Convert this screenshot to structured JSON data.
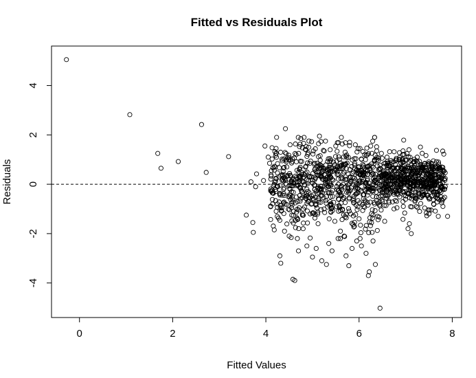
{
  "chart_data": {
    "type": "scatter",
    "title": "Fitted vs Residuals Plot",
    "xlabel": "Fitted Values",
    "ylabel": "Residuals",
    "xlim": [
      -0.6,
      8.2
    ],
    "ylim": [
      -5.4,
      5.6
    ],
    "xticks": [
      0,
      2,
      4,
      6,
      8
    ],
    "yticks": [
      -4,
      -2,
      0,
      2,
      4
    ],
    "xtick_labels": [
      "0",
      "2",
      "4",
      "6",
      "8"
    ],
    "ytick_labels": [
      "-4",
      "-2",
      "0",
      "2",
      "4"
    ],
    "reference_line": {
      "y": 0,
      "style": "dashed"
    },
    "marker": "open-circle",
    "grid": false,
    "legend": "none",
    "points": [
      [
        -0.28,
        5.05
      ],
      [
        1.08,
        2.82
      ],
      [
        1.68,
        1.25
      ],
      [
        1.75,
        0.65
      ],
      [
        2.12,
        0.92
      ],
      [
        2.62,
        2.42
      ],
      [
        2.72,
        0.48
      ],
      [
        3.2,
        1.12
      ],
      [
        3.58,
        -1.25
      ],
      [
        3.68,
        0.1
      ],
      [
        3.72,
        -1.55
      ],
      [
        3.73,
        -1.95
      ],
      [
        3.78,
        -0.1
      ],
      [
        3.8,
        0.42
      ],
      [
        3.95,
        0.15
      ],
      [
        3.98,
        1.55
      ],
      [
        4.05,
        1.1
      ],
      [
        4.08,
        0.85
      ],
      [
        4.12,
        0.55
      ],
      [
        4.15,
        -0.35
      ],
      [
        4.18,
        -1.85
      ],
      [
        4.22,
        1.45
      ],
      [
        4.25,
        -0.8
      ],
      [
        4.28,
        0.3
      ],
      [
        4.3,
        -2.9
      ],
      [
        4.32,
        -3.2
      ],
      [
        4.35,
        0.95
      ],
      [
        4.38,
        -0.2
      ],
      [
        4.4,
        -1.9
      ],
      [
        4.42,
        2.25
      ],
      [
        4.45,
        0.7
      ],
      [
        4.48,
        -0.5
      ],
      [
        4.5,
        -2.1
      ],
      [
        4.52,
        1.6
      ],
      [
        4.55,
        -0.95
      ],
      [
        4.58,
        -3.85
      ],
      [
        4.6,
        0.2
      ],
      [
        4.62,
        -3.9
      ],
      [
        4.65,
        1.2
      ],
      [
        4.68,
        -1.4
      ],
      [
        4.7,
        -2.7
      ],
      [
        4.72,
        0.6
      ],
      [
        4.75,
        1.85
      ],
      [
        4.78,
        -0.3
      ],
      [
        4.8,
        -1.8
      ],
      [
        4.82,
        1.9
      ],
      [
        4.85,
        0.45
      ],
      [
        4.88,
        -2.5
      ],
      [
        4.9,
        -0.7
      ],
      [
        4.92,
        1.5
      ],
      [
        4.95,
        -1.2
      ],
      [
        4.98,
        0.3
      ],
      [
        5.0,
        -2.95
      ],
      [
        5.02,
        1.35
      ],
      [
        5.05,
        -0.2
      ],
      [
        5.08,
        -2.6
      ],
      [
        5.1,
        0.85
      ],
      [
        5.12,
        -1.6
      ],
      [
        5.15,
        1.95
      ],
      [
        5.18,
        -0.45
      ],
      [
        5.2,
        -3.1
      ],
      [
        5.22,
        0.55
      ],
      [
        5.25,
        -1.0
      ],
      [
        5.28,
        1.75
      ],
      [
        5.3,
        -3.25
      ],
      [
        5.32,
        0.1
      ],
      [
        5.35,
        -2.4
      ],
      [
        5.38,
        1.4
      ],
      [
        5.4,
        -0.8
      ],
      [
        5.42,
        -2.7
      ],
      [
        5.45,
        0.9
      ],
      [
        5.48,
        -1.5
      ],
      [
        5.5,
        1.55
      ],
      [
        5.52,
        -0.1
      ],
      [
        5.55,
        -2.2
      ],
      [
        5.58,
        0.7
      ],
      [
        5.6,
        -1.9
      ],
      [
        5.62,
        1.9
      ],
      [
        5.65,
        -0.6
      ],
      [
        5.68,
        -2.1
      ],
      [
        5.7,
        1.3
      ],
      [
        5.72,
        -2.9
      ],
      [
        5.75,
        0.2
      ],
      [
        5.78,
        -3.3
      ],
      [
        5.8,
        1.7
      ],
      [
        5.82,
        -1.2
      ],
      [
        5.85,
        -2.6
      ],
      [
        5.88,
        0.5
      ],
      [
        5.9,
        -1.7
      ],
      [
        5.92,
        1.6
      ],
      [
        5.95,
        -2.3
      ],
      [
        5.98,
        0.0
      ],
      [
        6.0,
        -1.4
      ],
      [
        6.02,
        1.45
      ],
      [
        6.05,
        -2.5
      ],
      [
        6.08,
        0.8
      ],
      [
        6.1,
        -0.9
      ],
      [
        6.12,
        1.2
      ],
      [
        6.15,
        -2.8
      ],
      [
        6.18,
        0.4
      ],
      [
        6.2,
        -3.7
      ],
      [
        6.22,
        -3.55
      ],
      [
        6.25,
        1.55
      ],
      [
        6.28,
        -1.95
      ],
      [
        6.3,
        -2.3
      ],
      [
        6.32,
        0.1
      ],
      [
        6.35,
        -3.25
      ],
      [
        6.38,
        1.35
      ],
      [
        6.4,
        -1.3
      ],
      [
        6.42,
        0.6
      ],
      [
        6.45,
        -5.02
      ],
      [
        6.48,
        1.25
      ],
      [
        6.5,
        -0.7
      ],
      [
        6.55,
        -1.5
      ],
      [
        6.6,
        1.1
      ],
      [
        6.65,
        -0.4
      ],
      [
        6.7,
        0.9
      ],
      [
        6.75,
        -1.0
      ],
      [
        6.8,
        1.05
      ],
      [
        6.85,
        -0.2
      ],
      [
        6.9,
        0.85
      ],
      [
        6.95,
        -0.9
      ],
      [
        7.0,
        1.0
      ],
      [
        7.05,
        -1.8
      ],
      [
        7.08,
        -1.6
      ],
      [
        7.12,
        -2.0
      ],
      [
        7.15,
        0.6
      ],
      [
        7.2,
        -0.7
      ],
      [
        7.25,
        0.9
      ],
      [
        7.3,
        -1.1
      ],
      [
        7.35,
        0.7
      ],
      [
        7.4,
        -0.4
      ],
      [
        7.45,
        0.55
      ],
      [
        7.5,
        -1.2
      ],
      [
        7.55,
        0.3
      ],
      [
        7.6,
        -0.8
      ],
      [
        7.65,
        0.4
      ],
      [
        7.7,
        -1.3
      ],
      [
        7.75,
        -0.1
      ],
      [
        7.8,
        -0.9
      ],
      [
        7.85,
        -0.1
      ],
      [
        7.9,
        -1.3
      ]
    ],
    "dense_cloud": {
      "n": 1300,
      "x_range": [
        4.1,
        7.85
      ],
      "lower_tail_note": "spread widest around x 4.5-6.5"
    }
  }
}
